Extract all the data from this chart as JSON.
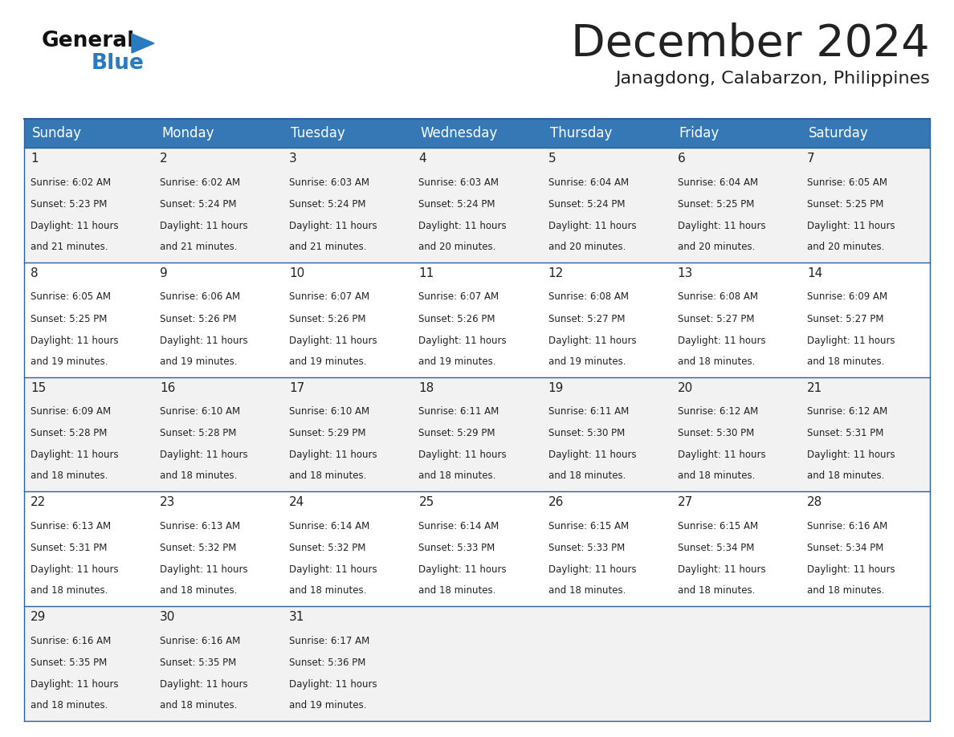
{
  "title": "December 2024",
  "subtitle": "Janagdong, Calabarzon, Philippines",
  "header_bg_color": "#3578b5",
  "header_text_color": "#ffffff",
  "row_bg_odd": "#f2f2f2",
  "row_bg_even": "#ffffff",
  "border_color": "#2c5f9e",
  "text_color": "#222222",
  "days_of_week": [
    "Sunday",
    "Monday",
    "Tuesday",
    "Wednesday",
    "Thursday",
    "Friday",
    "Saturday"
  ],
  "calendar": [
    [
      {
        "day": "1",
        "sunrise": "6:02 AM",
        "sunset": "5:23 PM",
        "daylight_line1": "Daylight: 11 hours",
        "daylight_line2": "and 21 minutes."
      },
      {
        "day": "2",
        "sunrise": "6:02 AM",
        "sunset": "5:24 PM",
        "daylight_line1": "Daylight: 11 hours",
        "daylight_line2": "and 21 minutes."
      },
      {
        "day": "3",
        "sunrise": "6:03 AM",
        "sunset": "5:24 PM",
        "daylight_line1": "Daylight: 11 hours",
        "daylight_line2": "and 21 minutes."
      },
      {
        "day": "4",
        "sunrise": "6:03 AM",
        "sunset": "5:24 PM",
        "daylight_line1": "Daylight: 11 hours",
        "daylight_line2": "and 20 minutes."
      },
      {
        "day": "5",
        "sunrise": "6:04 AM",
        "sunset": "5:24 PM",
        "daylight_line1": "Daylight: 11 hours",
        "daylight_line2": "and 20 minutes."
      },
      {
        "day": "6",
        "sunrise": "6:04 AM",
        "sunset": "5:25 PM",
        "daylight_line1": "Daylight: 11 hours",
        "daylight_line2": "and 20 minutes."
      },
      {
        "day": "7",
        "sunrise": "6:05 AM",
        "sunset": "5:25 PM",
        "daylight_line1": "Daylight: 11 hours",
        "daylight_line2": "and 20 minutes."
      }
    ],
    [
      {
        "day": "8",
        "sunrise": "6:05 AM",
        "sunset": "5:25 PM",
        "daylight_line1": "Daylight: 11 hours",
        "daylight_line2": "and 19 minutes."
      },
      {
        "day": "9",
        "sunrise": "6:06 AM",
        "sunset": "5:26 PM",
        "daylight_line1": "Daylight: 11 hours",
        "daylight_line2": "and 19 minutes."
      },
      {
        "day": "10",
        "sunrise": "6:07 AM",
        "sunset": "5:26 PM",
        "daylight_line1": "Daylight: 11 hours",
        "daylight_line2": "and 19 minutes."
      },
      {
        "day": "11",
        "sunrise": "6:07 AM",
        "sunset": "5:26 PM",
        "daylight_line1": "Daylight: 11 hours",
        "daylight_line2": "and 19 minutes."
      },
      {
        "day": "12",
        "sunrise": "6:08 AM",
        "sunset": "5:27 PM",
        "daylight_line1": "Daylight: 11 hours",
        "daylight_line2": "and 19 minutes."
      },
      {
        "day": "13",
        "sunrise": "6:08 AM",
        "sunset": "5:27 PM",
        "daylight_line1": "Daylight: 11 hours",
        "daylight_line2": "and 18 minutes."
      },
      {
        "day": "14",
        "sunrise": "6:09 AM",
        "sunset": "5:27 PM",
        "daylight_line1": "Daylight: 11 hours",
        "daylight_line2": "and 18 minutes."
      }
    ],
    [
      {
        "day": "15",
        "sunrise": "6:09 AM",
        "sunset": "5:28 PM",
        "daylight_line1": "Daylight: 11 hours",
        "daylight_line2": "and 18 minutes."
      },
      {
        "day": "16",
        "sunrise": "6:10 AM",
        "sunset": "5:28 PM",
        "daylight_line1": "Daylight: 11 hours",
        "daylight_line2": "and 18 minutes."
      },
      {
        "day": "17",
        "sunrise": "6:10 AM",
        "sunset": "5:29 PM",
        "daylight_line1": "Daylight: 11 hours",
        "daylight_line2": "and 18 minutes."
      },
      {
        "day": "18",
        "sunrise": "6:11 AM",
        "sunset": "5:29 PM",
        "daylight_line1": "Daylight: 11 hours",
        "daylight_line2": "and 18 minutes."
      },
      {
        "day": "19",
        "sunrise": "6:11 AM",
        "sunset": "5:30 PM",
        "daylight_line1": "Daylight: 11 hours",
        "daylight_line2": "and 18 minutes."
      },
      {
        "day": "20",
        "sunrise": "6:12 AM",
        "sunset": "5:30 PM",
        "daylight_line1": "Daylight: 11 hours",
        "daylight_line2": "and 18 minutes."
      },
      {
        "day": "21",
        "sunrise": "6:12 AM",
        "sunset": "5:31 PM",
        "daylight_line1": "Daylight: 11 hours",
        "daylight_line2": "and 18 minutes."
      }
    ],
    [
      {
        "day": "22",
        "sunrise": "6:13 AM",
        "sunset": "5:31 PM",
        "daylight_line1": "Daylight: 11 hours",
        "daylight_line2": "and 18 minutes."
      },
      {
        "day": "23",
        "sunrise": "6:13 AM",
        "sunset": "5:32 PM",
        "daylight_line1": "Daylight: 11 hours",
        "daylight_line2": "and 18 minutes."
      },
      {
        "day": "24",
        "sunrise": "6:14 AM",
        "sunset": "5:32 PM",
        "daylight_line1": "Daylight: 11 hours",
        "daylight_line2": "and 18 minutes."
      },
      {
        "day": "25",
        "sunrise": "6:14 AM",
        "sunset": "5:33 PM",
        "daylight_line1": "Daylight: 11 hours",
        "daylight_line2": "and 18 minutes."
      },
      {
        "day": "26",
        "sunrise": "6:15 AM",
        "sunset": "5:33 PM",
        "daylight_line1": "Daylight: 11 hours",
        "daylight_line2": "and 18 minutes."
      },
      {
        "day": "27",
        "sunrise": "6:15 AM",
        "sunset": "5:34 PM",
        "daylight_line1": "Daylight: 11 hours",
        "daylight_line2": "and 18 minutes."
      },
      {
        "day": "28",
        "sunrise": "6:16 AM",
        "sunset": "5:34 PM",
        "daylight_line1": "Daylight: 11 hours",
        "daylight_line2": "and 18 minutes."
      }
    ],
    [
      {
        "day": "29",
        "sunrise": "6:16 AM",
        "sunset": "5:35 PM",
        "daylight_line1": "Daylight: 11 hours",
        "daylight_line2": "and 18 minutes."
      },
      {
        "day": "30",
        "sunrise": "6:16 AM",
        "sunset": "5:35 PM",
        "daylight_line1": "Daylight: 11 hours",
        "daylight_line2": "and 18 minutes."
      },
      {
        "day": "31",
        "sunrise": "6:17 AM",
        "sunset": "5:36 PM",
        "daylight_line1": "Daylight: 11 hours",
        "daylight_line2": "and 19 minutes."
      },
      null,
      null,
      null,
      null
    ]
  ],
  "logo_general_color": "#111111",
  "logo_blue_color": "#2a7abf",
  "logo_triangle_color": "#2a7abf"
}
